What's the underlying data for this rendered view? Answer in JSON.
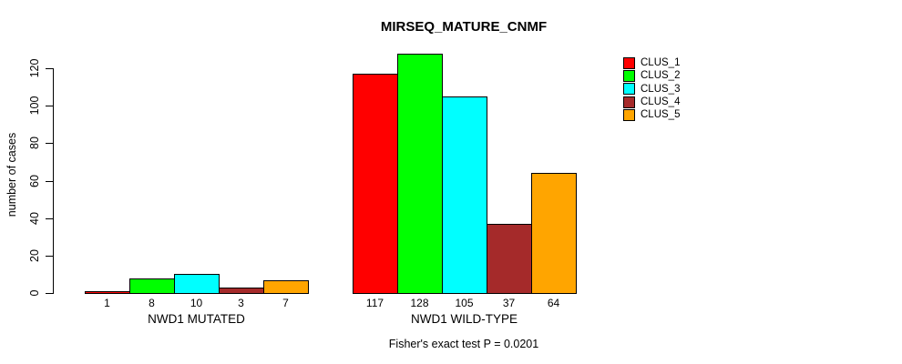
{
  "chart_data": {
    "type": "bar",
    "title": "MIRSEQ_MATURE_CNMF",
    "ylabel": "number of cases",
    "xlabel": "",
    "annotation": "Fisher's exact test P = 0.0201",
    "categories": [
      "NWD1 MUTATED",
      "NWD1 WILD-TYPE"
    ],
    "series": [
      {
        "name": "CLUS_1",
        "color": "#FF0000",
        "values": [
          1,
          117
        ]
      },
      {
        "name": "CLUS_2",
        "color": "#00FF00",
        "values": [
          8,
          128
        ]
      },
      {
        "name": "CLUS_3",
        "color": "#00FFFF",
        "values": [
          10,
          105
        ]
      },
      {
        "name": "CLUS_4",
        "color": "#A52A2A",
        "values": [
          3,
          37
        ]
      },
      {
        "name": "CLUS_5",
        "color": "#FFA500",
        "values": [
          7,
          64
        ]
      }
    ],
    "bar_value_labels": [
      [
        "1",
        "8",
        "10",
        "3",
        "7"
      ],
      [
        "117",
        "128",
        "105",
        "37",
        "64"
      ]
    ],
    "ylim": [
      0,
      120
    ],
    "y_ticks": [
      0,
      20,
      40,
      60,
      80,
      100,
      120
    ],
    "grid": false,
    "legend_position": "right",
    "legend_entries": [
      "CLUS_1",
      "CLUS_2",
      "CLUS_3",
      "CLUS_4",
      "CLUS_5"
    ],
    "axis_color": "#000000",
    "bar_border_color": "#000000",
    "background_color": "#FFFFFF"
  }
}
